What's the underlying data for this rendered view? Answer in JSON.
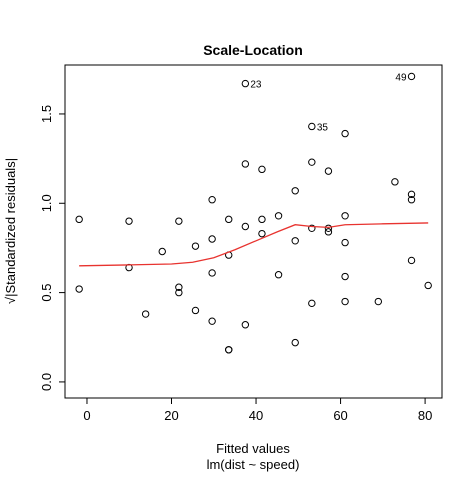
{
  "chart_data": {
    "type": "scatter",
    "title": "Scale-Location",
    "x_label": "Fitted values",
    "subtitle": "lm(dist ~ speed)",
    "y_label": "√|Standardized residuals|",
    "xlim": [
      -5.2,
      84.0
    ],
    "ylim": [
      -0.09,
      1.774
    ],
    "xticks": [
      0,
      20,
      40,
      60,
      80
    ],
    "yticks": [
      {
        "value": 0,
        "label": "0.0"
      },
      {
        "value": 0.5,
        "label": "0.5"
      },
      {
        "value": 1,
        "label": "1.0"
      },
      {
        "value": 1.5,
        "label": "1.5"
      }
    ],
    "points": {
      "color": "#000000",
      "x": [
        -1.85,
        -1.85,
        9.95,
        9.95,
        13.88,
        17.81,
        21.74,
        21.74,
        21.74,
        25.67,
        25.67,
        29.61,
        29.61,
        29.61,
        29.61,
        33.54,
        33.54,
        33.54,
        33.54,
        37.47,
        37.47,
        37.47,
        37.47,
        41.4,
        41.4,
        41.4,
        45.33,
        45.33,
        49.27,
        49.27,
        49.27,
        53.2,
        53.2,
        53.2,
        53.2,
        57.13,
        57.13,
        57.13,
        61.07,
        61.07,
        61.07,
        61.07,
        61.07,
        68.93,
        72.86,
        76.79,
        76.79,
        76.79,
        76.79,
        80.73
      ],
      "y": [
        0.91,
        0.52,
        0.9,
        0.64,
        0.38,
        0.73,
        0.9,
        0.53,
        0.5,
        0.76,
        0.4,
        1.02,
        0.8,
        0.61,
        0.34,
        0.91,
        0.71,
        0.18,
        0.18,
        1.67,
        1.22,
        0.87,
        0.32,
        1.19,
        0.91,
        0.83,
        0.93,
        0.6,
        1.07,
        0.79,
        0.22,
        1.43,
        1.23,
        0.86,
        0.44,
        1.18,
        0.86,
        0.84,
        1.39,
        0.93,
        0.78,
        0.59,
        0.45,
        0.45,
        1.12,
        1.71,
        1.05,
        1.02,
        0.68,
        0.54
      ]
    },
    "smooth": {
      "color": "#e8332f",
      "x": [
        -1.85,
        10,
        20,
        25,
        30,
        35,
        40,
        45,
        49.27,
        53.2,
        57.13,
        61.07,
        70,
        80.73
      ],
      "y": [
        0.65,
        0.655,
        0.66,
        0.67,
        0.695,
        0.74,
        0.79,
        0.84,
        0.88,
        0.87,
        0.865,
        0.88,
        0.885,
        0.89
      ]
    },
    "annotations": [
      {
        "text": "23",
        "x": 37.47,
        "y": 1.67
      },
      {
        "text": "35",
        "x": 53.2,
        "y": 1.43
      },
      {
        "text": "49",
        "x": 76.79,
        "y": 1.71
      }
    ]
  }
}
